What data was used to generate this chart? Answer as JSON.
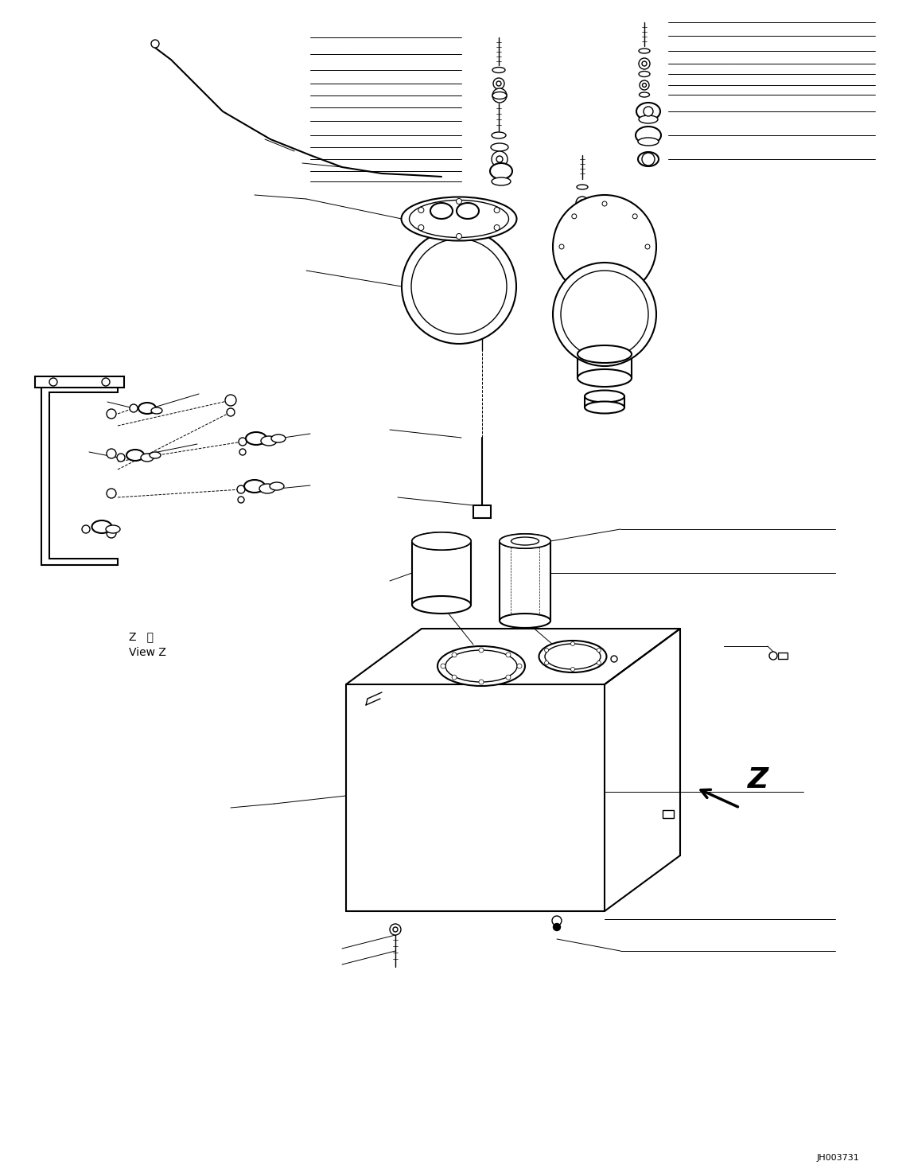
{
  "bg_color": "#ffffff",
  "line_color": "#000000",
  "figure_id": "JH003731",
  "view_label_jp": "Z   視",
  "view_label_en": "View Z",
  "z_arrow_label": "Z",
  "figsize": [
    11.49,
    14.69
  ],
  "dpi": 100
}
